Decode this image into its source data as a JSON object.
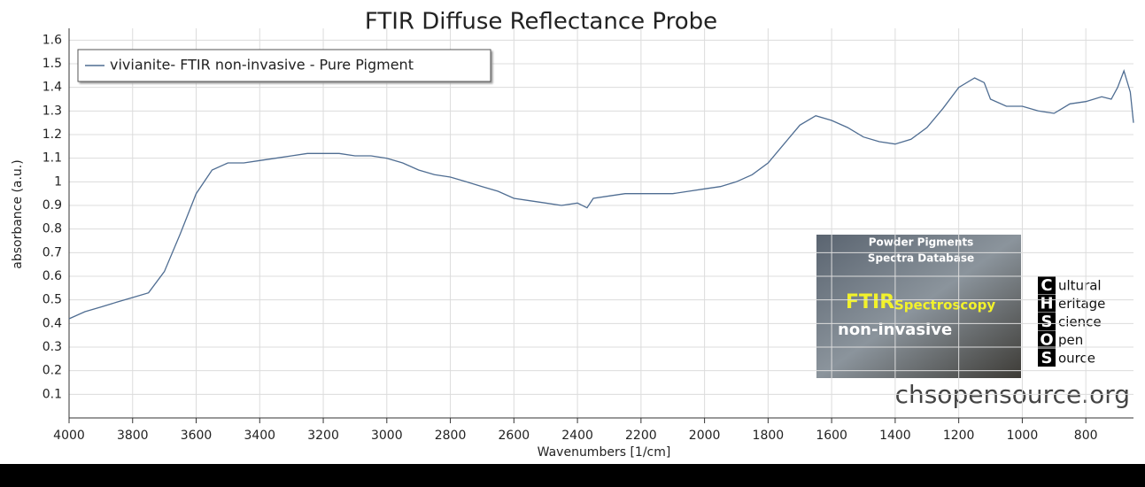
{
  "chart_data": {
    "type": "line",
    "title": "FTIR Diffuse Reflectance Probe",
    "x_label": "Wavenumbers [1/cm]",
    "y_label": "absorbance (a.u.)",
    "x": [
      4000,
      3950,
      3900,
      3850,
      3800,
      3750,
      3700,
      3650,
      3600,
      3550,
      3500,
      3450,
      3400,
      3350,
      3300,
      3250,
      3200,
      3150,
      3100,
      3050,
      3000,
      2950,
      2900,
      2850,
      2800,
      2750,
      2700,
      2650,
      2600,
      2550,
      2500,
      2450,
      2400,
      2370,
      2350,
      2300,
      2250,
      2200,
      2150,
      2100,
      2050,
      2000,
      1950,
      1900,
      1850,
      1800,
      1750,
      1700,
      1650,
      1600,
      1550,
      1500,
      1450,
      1400,
      1350,
      1300,
      1250,
      1200,
      1150,
      1120,
      1100,
      1050,
      1000,
      950,
      900,
      850,
      800,
      750,
      720,
      700,
      680,
      660,
      650
    ],
    "series": [
      {
        "name": "vivianite- FTIR non-invasive - Pure Pigment",
        "color": "#4f6d92",
        "values": [
          0.42,
          0.45,
          0.47,
          0.49,
          0.51,
          0.53,
          0.62,
          0.78,
          0.95,
          1.05,
          1.08,
          1.08,
          1.09,
          1.1,
          1.11,
          1.12,
          1.12,
          1.12,
          1.11,
          1.11,
          1.1,
          1.08,
          1.05,
          1.03,
          1.02,
          1.0,
          0.98,
          0.96,
          0.93,
          0.92,
          0.91,
          0.9,
          0.91,
          0.89,
          0.93,
          0.94,
          0.95,
          0.95,
          0.95,
          0.95,
          0.96,
          0.97,
          0.98,
          1.0,
          1.03,
          1.08,
          1.16,
          1.24,
          1.28,
          1.26,
          1.23,
          1.19,
          1.17,
          1.16,
          1.18,
          1.23,
          1.31,
          1.4,
          1.44,
          1.42,
          1.35,
          1.32,
          1.32,
          1.3,
          1.29,
          1.33,
          1.34,
          1.36,
          1.35,
          1.4,
          1.47,
          1.38,
          1.25
        ]
      }
    ],
    "xlim": [
      4000,
      650
    ],
    "xticks": [
      4000,
      3800,
      3600,
      3400,
      3200,
      3000,
      2800,
      2600,
      2400,
      2200,
      2000,
      1800,
      1600,
      1400,
      1200,
      1000,
      800
    ],
    "ylim": [
      0,
      1.65
    ],
    "yticks": [
      0.1,
      0.2,
      0.3,
      0.4,
      0.5,
      0.6,
      0.7,
      0.8,
      0.9,
      1,
      1.1,
      1.2,
      1.3,
      1.4,
      1.5,
      1.6
    ],
    "grid": true,
    "legend": "top-left",
    "watermark": {
      "image_texts": [
        "Powder Pigments",
        "Spectra Database",
        "FTIR",
        "Spectroscopy",
        "non-invasive"
      ],
      "logo": [
        {
          "letter": "C",
          "rest": "ultural"
        },
        {
          "letter": "H",
          "rest": "eritage"
        },
        {
          "letter": "S",
          "rest": "cience"
        },
        {
          "letter": "O",
          "rest": "pen"
        },
        {
          "letter": "S",
          "rest": "ource"
        }
      ],
      "site": "chsopensource.org"
    }
  }
}
